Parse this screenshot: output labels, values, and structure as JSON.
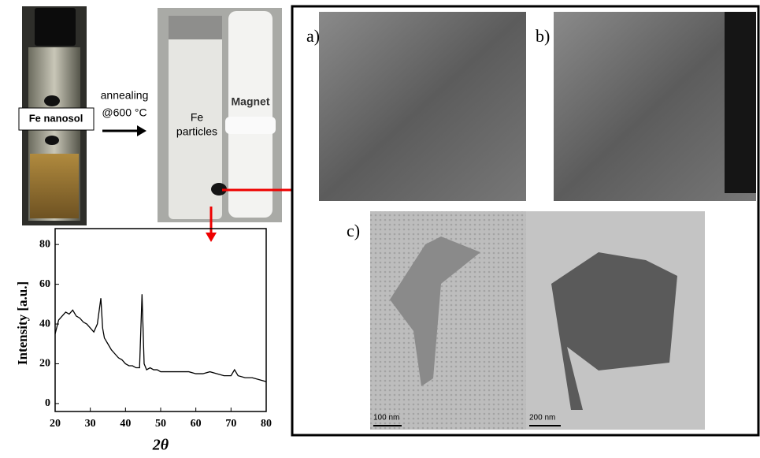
{
  "labels": {
    "nanosol": "Fe nanosol",
    "annealing": "annealing",
    "temperature": "@600 °C",
    "particles_1": "Fe",
    "particles_2": "particles",
    "magnet": "Magnet",
    "panel_a": "a)",
    "panel_b": "b)",
    "panel_c": "c)",
    "scale_1": "100 nm",
    "scale_2": "200 nm"
  },
  "chart_data": {
    "type": "line",
    "xlabel": "2θ",
    "ylabel": "Intensity [a.u.]",
    "color": "#000000",
    "x": [
      20,
      21,
      22,
      23,
      24,
      25,
      26,
      27,
      28,
      29,
      30,
      31,
      32,
      33,
      33.5,
      34,
      35,
      36,
      37,
      38,
      39,
      40,
      41,
      42,
      43,
      44,
      44.7,
      45.3,
      46,
      47,
      48,
      49,
      50,
      52,
      54,
      56,
      58,
      60,
      62,
      64,
      66,
      68,
      70,
      71,
      72,
      74,
      76,
      78,
      80
    ],
    "values": [
      35,
      42,
      44,
      46,
      45,
      47,
      44,
      43,
      41,
      40,
      38,
      36,
      40,
      53,
      38,
      33,
      30,
      27,
      25,
      23,
      22,
      20,
      19,
      19,
      18,
      18,
      55,
      20,
      17,
      18,
      17,
      17,
      16,
      16,
      16,
      16,
      16,
      15,
      15,
      16,
      15,
      14,
      14,
      17,
      14,
      13,
      13,
      12,
      11
    ],
    "xlim": [
      20,
      80
    ],
    "xticks": [
      20,
      30,
      40,
      50,
      60,
      70,
      80
    ],
    "ylim": [
      -4,
      88
    ],
    "yticks": [
      0,
      20,
      40,
      60,
      80
    ]
  }
}
